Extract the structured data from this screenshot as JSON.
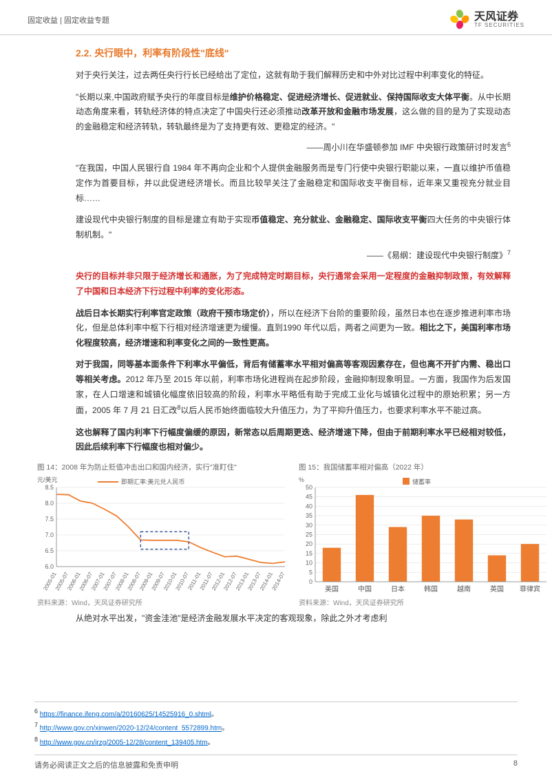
{
  "header": {
    "breadcrumb": "固定收益 | 固定收益专题",
    "logo_cn": "天风证券",
    "logo_en": "TF SECURITIES"
  },
  "section": {
    "title": "2.2. 央行眼中，利率有阶段性\"底线\""
  },
  "paragraphs": {
    "p1": "对于央行关注，过去两任央行行长已经给出了定位，这就有助于我们解释历史和中外对比过程中利率变化的特征。",
    "p2_a": "\"长期以来,中国政府赋予央行的年度目标是",
    "p2_b": "维护价格稳定、促进经济增长、促进就业、保持国际收支大体平衡",
    "p2_c": "。从中长期动态角度来看，转轨经济体的特点决定了中国央行还必须推动",
    "p2_d": "改革开放和金融市场发展",
    "p2_e": "，这么做的目的是为了实现动态的金融稳定和经济转轨，转轨最终是为了支持更有效、更稳定的经济。\"",
    "src1": "——周小川在华盛顿参加 IMF 中央银行政策研讨时发言",
    "src1_sup": "6",
    "p3": "\"在我国，中国人民银行自 1984 年不再向企业和个人提供金融服务而是专门行使中央银行职能以来，一直以维护币值稳定作为首要目标，并以此促进经济增长。而且比较早关注了金融稳定和国际收支平衡目标，近年来又重视充分就业目标……",
    "p4_a": "建设现代中央银行制度的目标是建立有助于实现",
    "p4_b": "币值稳定、充分就业、金融稳定、国际收支平衡",
    "p4_c": "四大任务的中央银行体制机制。\"",
    "src2": "——《易纲：建设现代中央银行制度》",
    "src2_sup": "7",
    "p5": "央行的目标并非只限于经济增长和通胀，为了完成特定时期目标，央行通常会采用一定程度的金融抑制政策，有效解释了中国和日本经济下行过程中利率的变化形态。",
    "p6_a": "战后日本长期实行利率官定政策（政府干预市场定价）",
    "p6_b": "，所以在经济下台阶的重要阶段，虽然日本也在逐步推进利率市场化，但是总体利率中枢下行相对经济增速更为缓慢。直到1990 年代以后，两者之间更为一致。",
    "p6_c": "相比之下，美国利率市场化程度较高，经济增速和利率变化之间的一致性更高。",
    "p7_a": "对于我国，同等基本面条件下利率水平偏低，背后有储蓄率水平相对偏高等客观因素存在，但也离不开扩内需、稳出口等相关考虑。",
    "p7_b": "2012 年乃至 2015 年以前，利率市场化进程尚在起步阶段，金融抑制现象明显。一方面，我国作为后发国家，在人口增速和城镇化幅度依旧较高的阶段，利率水平略低有助于完成工业化与城镇化过程中的原始积累；另一方面，2005 年 7 月 21 日汇改",
    "p7_sup": "8",
    "p7_c": "以后人民币始终面临较大升值压力，为了平抑升值压力，也要求利率水平不能过高。",
    "p8": "这也解释了国内利率下行幅度偏缓的原因，新常态以后周期更迭、经济增速下降，但由于前期利率水平已经相对较低，因此后续利率下行幅度也相对偏少。",
    "p_last": "从绝对水平出发，\"资金洼池\"是经济金融发展水平决定的客观现象，除此之外才考虑利"
  },
  "chart_left": {
    "title": "图 14：2008 年为防止贬值冲击出口和国内经济，实行\"准盯住\"",
    "ylabel": "元/美元",
    "legend": "即期汇率:美元兑人民币",
    "source": "资料来源：Wind，天风证券研究所",
    "ylim": [
      6.0,
      8.5
    ],
    "yticks": [
      6.0,
      6.5,
      7.0,
      7.5,
      8.0,
      8.5
    ],
    "x_labels": [
      "2005-01",
      "2005-07",
      "2006-01",
      "2006-07",
      "2007-01",
      "2007-07",
      "2008-01",
      "2008-07",
      "2009-01",
      "2009-07",
      "2010-01",
      "2010-07",
      "2011-01",
      "2011-07",
      "2012-01",
      "2012-07",
      "2013-01",
      "2013-07",
      "2014-01",
      "2014-07"
    ],
    "values": [
      8.28,
      8.27,
      8.07,
      8.0,
      7.81,
      7.6,
      7.25,
      6.84,
      6.83,
      6.83,
      6.83,
      6.78,
      6.6,
      6.45,
      6.31,
      6.33,
      6.23,
      6.13,
      6.1,
      6.15
    ],
    "line_color": "#ed7d31",
    "highlight_box": {
      "x_start_idx": 7,
      "x_end_idx": 11,
      "y_min": 6.55,
      "y_max": 7.1,
      "color": "#3b5998"
    },
    "grid_color": "#d9d9d9",
    "background_color": "#ffffff"
  },
  "chart_right": {
    "title": "图 15：我国储蓄率相对偏高（2022 年）",
    "ylabel": "%",
    "legend": "储蓄率",
    "source": "资料来源：Wind，天风证券研究所",
    "categories": [
      "美国",
      "中国",
      "日本",
      "韩国",
      "越南",
      "英国",
      "菲律宾"
    ],
    "values": [
      18,
      46,
      29,
      35,
      33,
      14,
      20
    ],
    "ylim": [
      0,
      50
    ],
    "yticks": [
      0,
      5,
      10,
      15,
      20,
      25,
      30,
      35,
      40,
      45,
      50
    ],
    "bar_color": "#ed7d31",
    "grid_color": "#d9d9d9",
    "background_color": "#ffffff"
  },
  "footnotes": {
    "f6_num": "6",
    "f6_url": "https://finance.ifeng.com/a/20160625/14525916_0.shtml",
    "f7_num": "7",
    "f7_url": "http://www.gov.cn/xinwen/2020-12/24/content_5572899.htm",
    "f8_num": "8",
    "f8_url": "http://www.gov.cn/jrzg/2005-12/28/content_139405.htm",
    "tail": "。"
  },
  "footer": {
    "disclaimer": "请务必阅读正文之后的信息披露和免责申明",
    "page": "8"
  }
}
